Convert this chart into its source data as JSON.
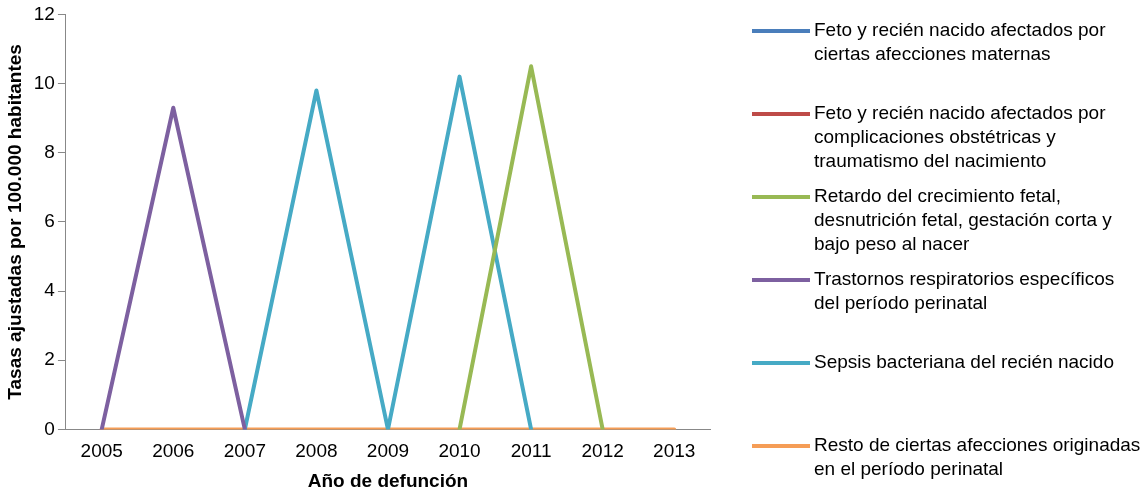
{
  "chart_data": {
    "type": "line",
    "xlabel": "Año de defunción",
    "ylabel": "Tasas ajustadas por 100.000 habitantes",
    "categories": [
      "2005",
      "2006",
      "2007",
      "2008",
      "2009",
      "2010",
      "2011",
      "2012",
      "2013"
    ],
    "ylim": [
      0,
      12
    ],
    "yticks": [
      0,
      2,
      4,
      6,
      8,
      10,
      12
    ],
    "grid": false,
    "legend": "right",
    "marker": "none",
    "series": [
      {
        "name": "Feto y recién nacido afectados por ciertas afecciones maternas",
        "color": "#4a7ebb",
        "values": [
          null,
          null,
          null,
          null,
          null,
          null,
          null,
          null,
          null
        ]
      },
      {
        "name": "Feto y recién nacido afectados por complicaciones obstétricas y traumatismo del nacimiento",
        "color": "#be4b48",
        "values": [
          null,
          null,
          null,
          null,
          null,
          null,
          null,
          null,
          null
        ]
      },
      {
        "name": "Retardo del crecimiento fetal, desnutrición fetal, gestación corta y bajo peso al nacer",
        "color": "#98b954",
        "values": [
          null,
          null,
          null,
          null,
          null,
          0,
          10.5,
          0,
          null
        ]
      },
      {
        "name": "Trastornos respiratorios específicos del período perinatal",
        "color": "#7d60a0",
        "values": [
          0,
          9.3,
          0,
          null,
          null,
          null,
          null,
          null,
          null
        ]
      },
      {
        "name": "Sepsis bacteriana del recién nacido",
        "color": "#46aac5",
        "values": [
          null,
          null,
          0,
          9.8,
          0,
          10.2,
          0,
          null,
          null
        ]
      },
      {
        "name": "Resto de ciertas afecciones originadas en el período perinatal",
        "color": "#f59d56",
        "values": [
          0,
          0,
          0,
          0,
          0,
          0,
          0,
          0,
          0
        ]
      }
    ]
  }
}
